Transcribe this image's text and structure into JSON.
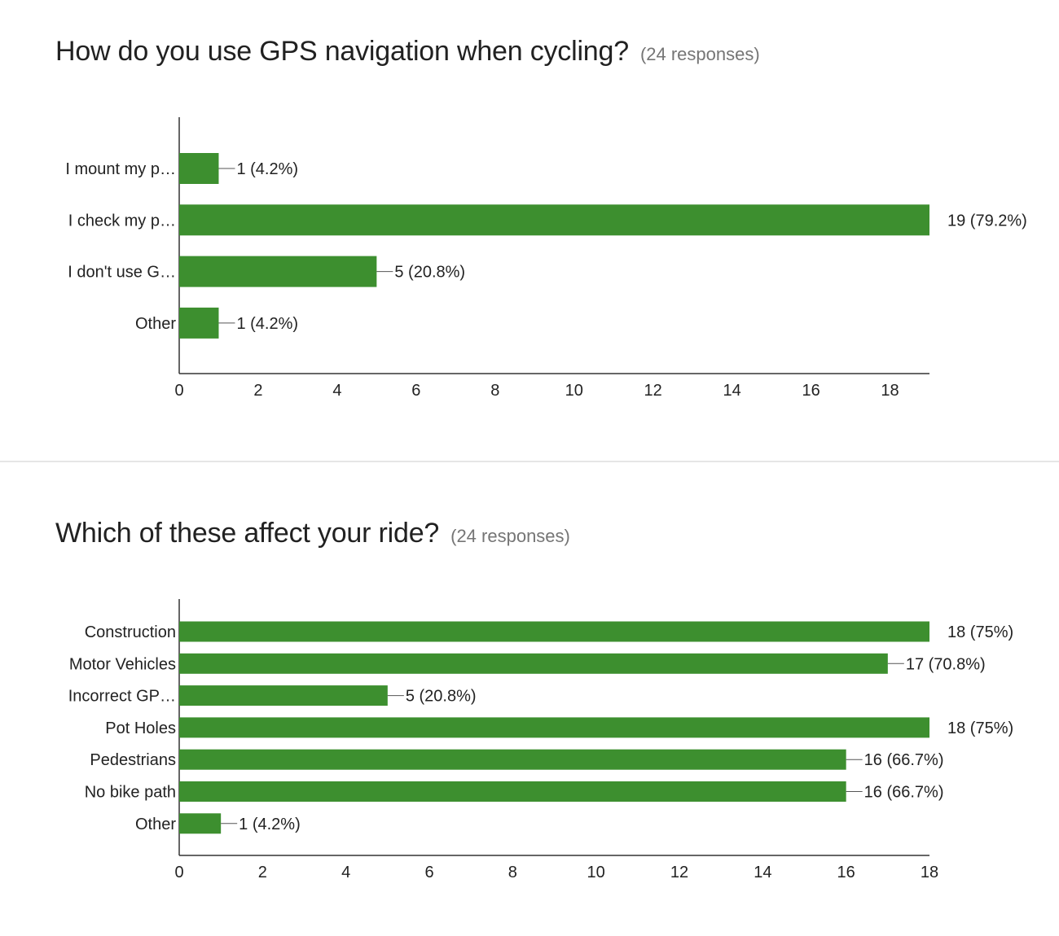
{
  "charts": [
    {
      "question": "How do you use GPS navigation when cycling?",
      "responses": "(24 responses)"
    },
    {
      "question": "Which of these affect your ride?",
      "responses": "(24 responses)"
    }
  ],
  "colors": {
    "bar": "#3d8f2f",
    "axis": "#333333",
    "divider": "#e6e6e6",
    "responses_text": "#757575"
  },
  "chart_data": [
    {
      "type": "bar",
      "orientation": "horizontal",
      "title": "How do you use GPS navigation when cycling?",
      "subtitle": "(24 responses)",
      "categories": [
        "I mount my p…",
        "I check my p…",
        "I don't use G…",
        "Other"
      ],
      "values": [
        1,
        19,
        5,
        1
      ],
      "data_labels": [
        "1 (4.2%)",
        "19 (79.2%)",
        "5 (20.8%)",
        "1 (4.2%)"
      ],
      "xlim": [
        0,
        19
      ],
      "xticks": [
        0,
        2,
        4,
        6,
        8,
        10,
        12,
        14,
        16,
        18
      ],
      "xlabel": "",
      "ylabel": "",
      "grid": false,
      "legend": "none"
    },
    {
      "type": "bar",
      "orientation": "horizontal",
      "title": "Which of these affect your ride?",
      "subtitle": "(24 responses)",
      "categories": [
        "Construction",
        "Motor Vehicles",
        "Incorrect GP…",
        "Pot Holes",
        "Pedestrians",
        "No bike path",
        "Other"
      ],
      "values": [
        18,
        17,
        5,
        18,
        16,
        16,
        1
      ],
      "data_labels": [
        "18 (75%)",
        "17 (70.8%)",
        "5 (20.8%)",
        "18 (75%)",
        "16 (66.7%)",
        "16 (66.7%)",
        "1 (4.2%)"
      ],
      "xlim": [
        0,
        18
      ],
      "xticks": [
        0,
        2,
        4,
        6,
        8,
        10,
        12,
        14,
        16,
        18
      ],
      "xlabel": "",
      "ylabel": "",
      "grid": false,
      "legend": "none"
    }
  ]
}
